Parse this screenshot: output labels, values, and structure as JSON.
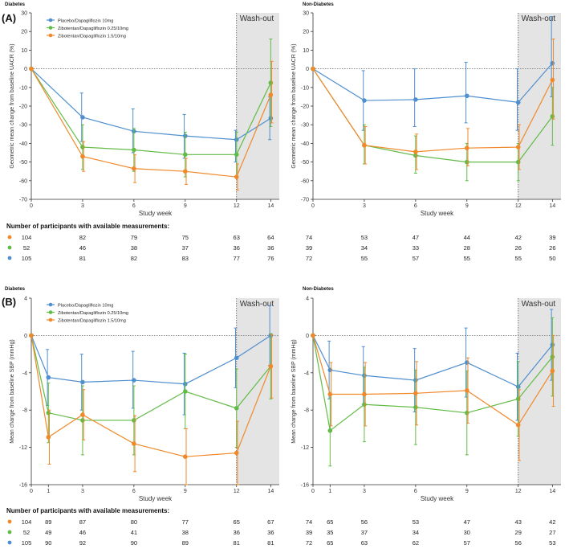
{
  "panel_labels": [
    "(A)",
    "(B)"
  ],
  "washout_label": "Wash-out",
  "colors": {
    "placebo": "#4f8fcf",
    "zibo025": "#62bb47",
    "zibo15": "#f0892a",
    "washout": "#e4e4e4",
    "axis": "#333333"
  },
  "legend": [
    "Placebo/Dapagliflozin 10mg",
    "Zibotentan/Dapagliflozin 0.25/10mg",
    "Zibotentan/Dapagliflozin 1.5/10mg"
  ],
  "chart_data": [
    {
      "type": "line",
      "panel": "(A)",
      "title": "Diabetes",
      "xlabel": "Study week",
      "ylabel": "Geometric mean change from baseline UACR (%)",
      "xlim": [
        0,
        14.5
      ],
      "ylim": [
        -70,
        30
      ],
      "yticks": [
        30,
        20,
        10,
        0,
        -10,
        -20,
        -30,
        -40,
        -50,
        -60,
        -70
      ],
      "x_ticks": [
        0,
        3,
        6,
        9,
        12,
        14
      ],
      "washout_start": 12,
      "show_legend": true,
      "series": [
        {
          "name": "Placebo/Dapagliflozin 10mg",
          "color_key": "placebo",
          "x": [
            0,
            3,
            6,
            9,
            12,
            14
          ],
          "y": [
            0,
            -26,
            -33.5,
            -36,
            -38,
            -26.5
          ],
          "lo": [
            0,
            -39,
            -45,
            -48,
            -50,
            -38
          ],
          "hi": [
            0,
            -13,
            -21.5,
            -24.5,
            -33,
            -15
          ]
        },
        {
          "name": "Zibotentan/Dapagliflozin 0.25/10mg",
          "color_key": "zibo025",
          "x": [
            0,
            3,
            6,
            9,
            12,
            14
          ],
          "y": [
            0,
            -42,
            -43.5,
            -46,
            -46,
            -7.5
          ],
          "lo": [
            0,
            -54,
            -55,
            -58,
            -58,
            -31
          ],
          "hi": [
            0,
            -30,
            -32,
            -34,
            -34,
            16
          ]
        },
        {
          "name": "Zibotentan/Dapagliflozin 1.5/10mg",
          "color_key": "zibo15",
          "x": [
            0,
            3,
            6,
            9,
            12,
            14
          ],
          "y": [
            0,
            -47,
            -53.5,
            -55,
            -58,
            -14
          ],
          "lo": [
            0,
            -55,
            -61,
            -62,
            -65,
            -29
          ],
          "hi": [
            0,
            -39,
            -46,
            -48,
            -51,
            4
          ]
        }
      ]
    },
    {
      "type": "line",
      "panel": "",
      "title": "Non-Diabetes",
      "xlabel": "Study week",
      "ylabel": "Geometric mean change from baseline UACR (%)",
      "xlim": [
        0,
        14.5
      ],
      "ylim": [
        -70,
        30
      ],
      "yticks": [
        30,
        20,
        10,
        0,
        -10,
        -20,
        -30,
        -40,
        -50,
        -60,
        -70
      ],
      "x_ticks": [
        0,
        3,
        6,
        9,
        12,
        14
      ],
      "washout_start": 12,
      "show_legend": false,
      "series": [
        {
          "name": "Placebo/Dapagliflozin 10mg",
          "color_key": "placebo",
          "x": [
            0,
            3,
            6,
            9,
            12,
            14
          ],
          "y": [
            0,
            -17,
            -16.5,
            -14.5,
            -18,
            3
          ],
          "lo": [
            0,
            -33,
            -31,
            -29,
            -33,
            -15
          ],
          "hi": [
            0,
            -1,
            0,
            3.5,
            0,
            28
          ]
        },
        {
          "name": "Zibotentan/Dapagliflozin 0.25/10mg",
          "color_key": "zibo025",
          "x": [
            0,
            3,
            6,
            9,
            12,
            14
          ],
          "y": [
            0,
            -41,
            -46.5,
            -50,
            -50,
            -25.5
          ],
          "lo": [
            0,
            -51,
            -56,
            -60,
            -60,
            -41
          ],
          "hi": [
            0,
            -30,
            -36,
            -40,
            -40,
            -10
          ]
        },
        {
          "name": "Zibotentan/Dapagliflozin 1.5/10mg",
          "color_key": "zibo15",
          "x": [
            0,
            3,
            6,
            9,
            12,
            14
          ],
          "y": [
            0,
            -41,
            -44.5,
            -42.5,
            -42,
            -6
          ],
          "lo": [
            0,
            -51,
            -54,
            -52,
            -54,
            -27
          ],
          "hi": [
            0,
            -31,
            -35,
            -32,
            -30,
            16
          ]
        }
      ]
    },
    {
      "type": "line",
      "panel": "(B)",
      "title": "Diabetes",
      "xlabel": "Study week",
      "ylabel": "Mean change from baseline SBP (mmHg)",
      "xlim": [
        0,
        14.5
      ],
      "ylim": [
        -16,
        4
      ],
      "yticks": [
        4,
        0,
        -4,
        -8,
        -12,
        -16
      ],
      "x_ticks": [
        0,
        1,
        3,
        6,
        9,
        12,
        14
      ],
      "washout_start": 12,
      "show_legend": true,
      "series": [
        {
          "name": "Placebo/Dapagliflozin 10mg",
          "color_key": "placebo",
          "x": [
            0,
            1,
            3,
            6,
            9,
            12,
            14
          ],
          "y": [
            0,
            -4.5,
            -5,
            -4.8,
            -5.2,
            -2.4,
            0
          ],
          "lo": [
            0,
            -7.5,
            -8,
            -7.8,
            -8.5,
            -5.6,
            -3.2
          ],
          "hi": [
            0,
            -1.5,
            -2,
            -1.7,
            -1.9,
            0.8,
            3.2
          ]
        },
        {
          "name": "Zibotentan/Dapagliflozin 0.25/10mg",
          "color_key": "zibo025",
          "x": [
            0,
            1,
            3,
            6,
            9,
            12,
            14
          ],
          "y": [
            0,
            -8.3,
            -9.1,
            -9.1,
            -6,
            -7.8,
            -3.3
          ],
          "lo": [
            0,
            -11.5,
            -12.8,
            -12.8,
            -10,
            -12,
            -6.8
          ],
          "hi": [
            0,
            -5.1,
            -5.4,
            -5.4,
            -2,
            -3.6,
            0.2
          ]
        },
        {
          "name": "Zibotentan/Dapagliflozin 1.5/10mg",
          "color_key": "zibo15",
          "x": [
            0,
            1,
            3,
            6,
            9,
            12,
            14
          ],
          "y": [
            0,
            -10.9,
            -8.5,
            -11.6,
            -13,
            -12.6,
            -3.3
          ],
          "lo": [
            0,
            -13.8,
            -11.2,
            -14.6,
            -16,
            -16,
            -6.7
          ],
          "hi": [
            0,
            -8,
            -5.8,
            -8.6,
            -10,
            -9.2,
            0.1
          ]
        }
      ]
    },
    {
      "type": "line",
      "panel": "",
      "title": "Non-Diabetes",
      "xlabel": "Study week",
      "ylabel": "Mean change from baseline SBP (mmHg)",
      "xlim": [
        0,
        14.5
      ],
      "ylim": [
        -16,
        4
      ],
      "yticks": [
        4,
        0,
        -4,
        -8,
        -12,
        -16
      ],
      "x_ticks": [
        0,
        1,
        3,
        6,
        9,
        12,
        14
      ],
      "washout_start": 12,
      "show_legend": false,
      "series": [
        {
          "name": "Placebo/Dapagliflozin 10mg",
          "color_key": "placebo",
          "x": [
            0,
            1,
            3,
            6,
            9,
            12,
            14
          ],
          "y": [
            0,
            -3.7,
            -4.3,
            -4.8,
            -2.9,
            -5.5,
            -1
          ],
          "lo": [
            0,
            -6.8,
            -7.4,
            -8.2,
            -6.6,
            -9.1,
            -4.8
          ],
          "hi": [
            0,
            -0.6,
            -1.2,
            -1.4,
            0.8,
            -1.9,
            2.8
          ]
        },
        {
          "name": "Zibotentan/Dapagliflozin 0.25/10mg",
          "color_key": "zibo025",
          "x": [
            0,
            1,
            3,
            6,
            9,
            12,
            14
          ],
          "y": [
            0,
            -10.2,
            -7.4,
            -7.7,
            -8.3,
            -6.8,
            -2.3
          ],
          "lo": [
            0,
            -14,
            -11.4,
            -11.7,
            -12.8,
            -10.8,
            -6.5
          ],
          "hi": [
            0,
            -6.4,
            -3.4,
            -3.7,
            -3.8,
            -2.8,
            1.9
          ]
        },
        {
          "name": "Zibotentan/Dapagliflozin 1.5/10mg",
          "color_key": "zibo15",
          "x": [
            0,
            1,
            3,
            6,
            9,
            12,
            14
          ],
          "y": [
            0,
            -6.3,
            -6.3,
            -6.2,
            -5.9,
            -9.6,
            -3.8
          ],
          "lo": [
            0,
            -9.7,
            -9.7,
            -9.6,
            -9.4,
            -13.4,
            -7.6
          ],
          "hi": [
            0,
            -2.9,
            -2.9,
            -2.8,
            -2.4,
            -5.8,
            0
          ]
        }
      ]
    }
  ],
  "participant_tables": [
    {
      "title": "Number of participants with available measurements:",
      "rows": [
        {
          "color_key": "zibo15",
          "cols": [
            [
              "104",
              "82",
              "79",
              "75",
              "63",
              "64"
            ],
            [
              "74",
              "53",
              "47",
              "44",
              "42",
              "39"
            ]
          ]
        },
        {
          "color_key": "zibo025",
          "cols": [
            [
              "52",
              "46",
              "38",
              "37",
              "36",
              "36"
            ],
            [
              "39",
              "34",
              "33",
              "28",
              "26",
              "26"
            ]
          ]
        },
        {
          "color_key": "placebo",
          "cols": [
            [
              "105",
              "81",
              "82",
              "83",
              "77",
              "76"
            ],
            [
              "72",
              "55",
              "57",
              "55",
              "55",
              "50"
            ]
          ]
        }
      ]
    },
    {
      "title": "Number of participants with available measurements:",
      "rows": [
        {
          "color_key": "zibo15",
          "cols": [
            [
              "104",
              "89",
              "87",
              "80",
              "77",
              "65",
              "67"
            ],
            [
              "74",
              "65",
              "56",
              "53",
              "47",
              "43",
              "42"
            ]
          ]
        },
        {
          "color_key": "zibo025",
          "cols": [
            [
              "52",
              "49",
              "46",
              "41",
              "38",
              "36",
              "36"
            ],
            [
              "39",
              "35",
              "37",
              "34",
              "30",
              "29",
              "27"
            ]
          ]
        },
        {
          "color_key": "placebo",
          "cols": [
            [
              "105",
              "90",
              "92",
              "90",
              "89",
              "81",
              "81"
            ],
            [
              "72",
              "65",
              "63",
              "62",
              "57",
              "56",
              "53"
            ]
          ]
        }
      ]
    }
  ]
}
